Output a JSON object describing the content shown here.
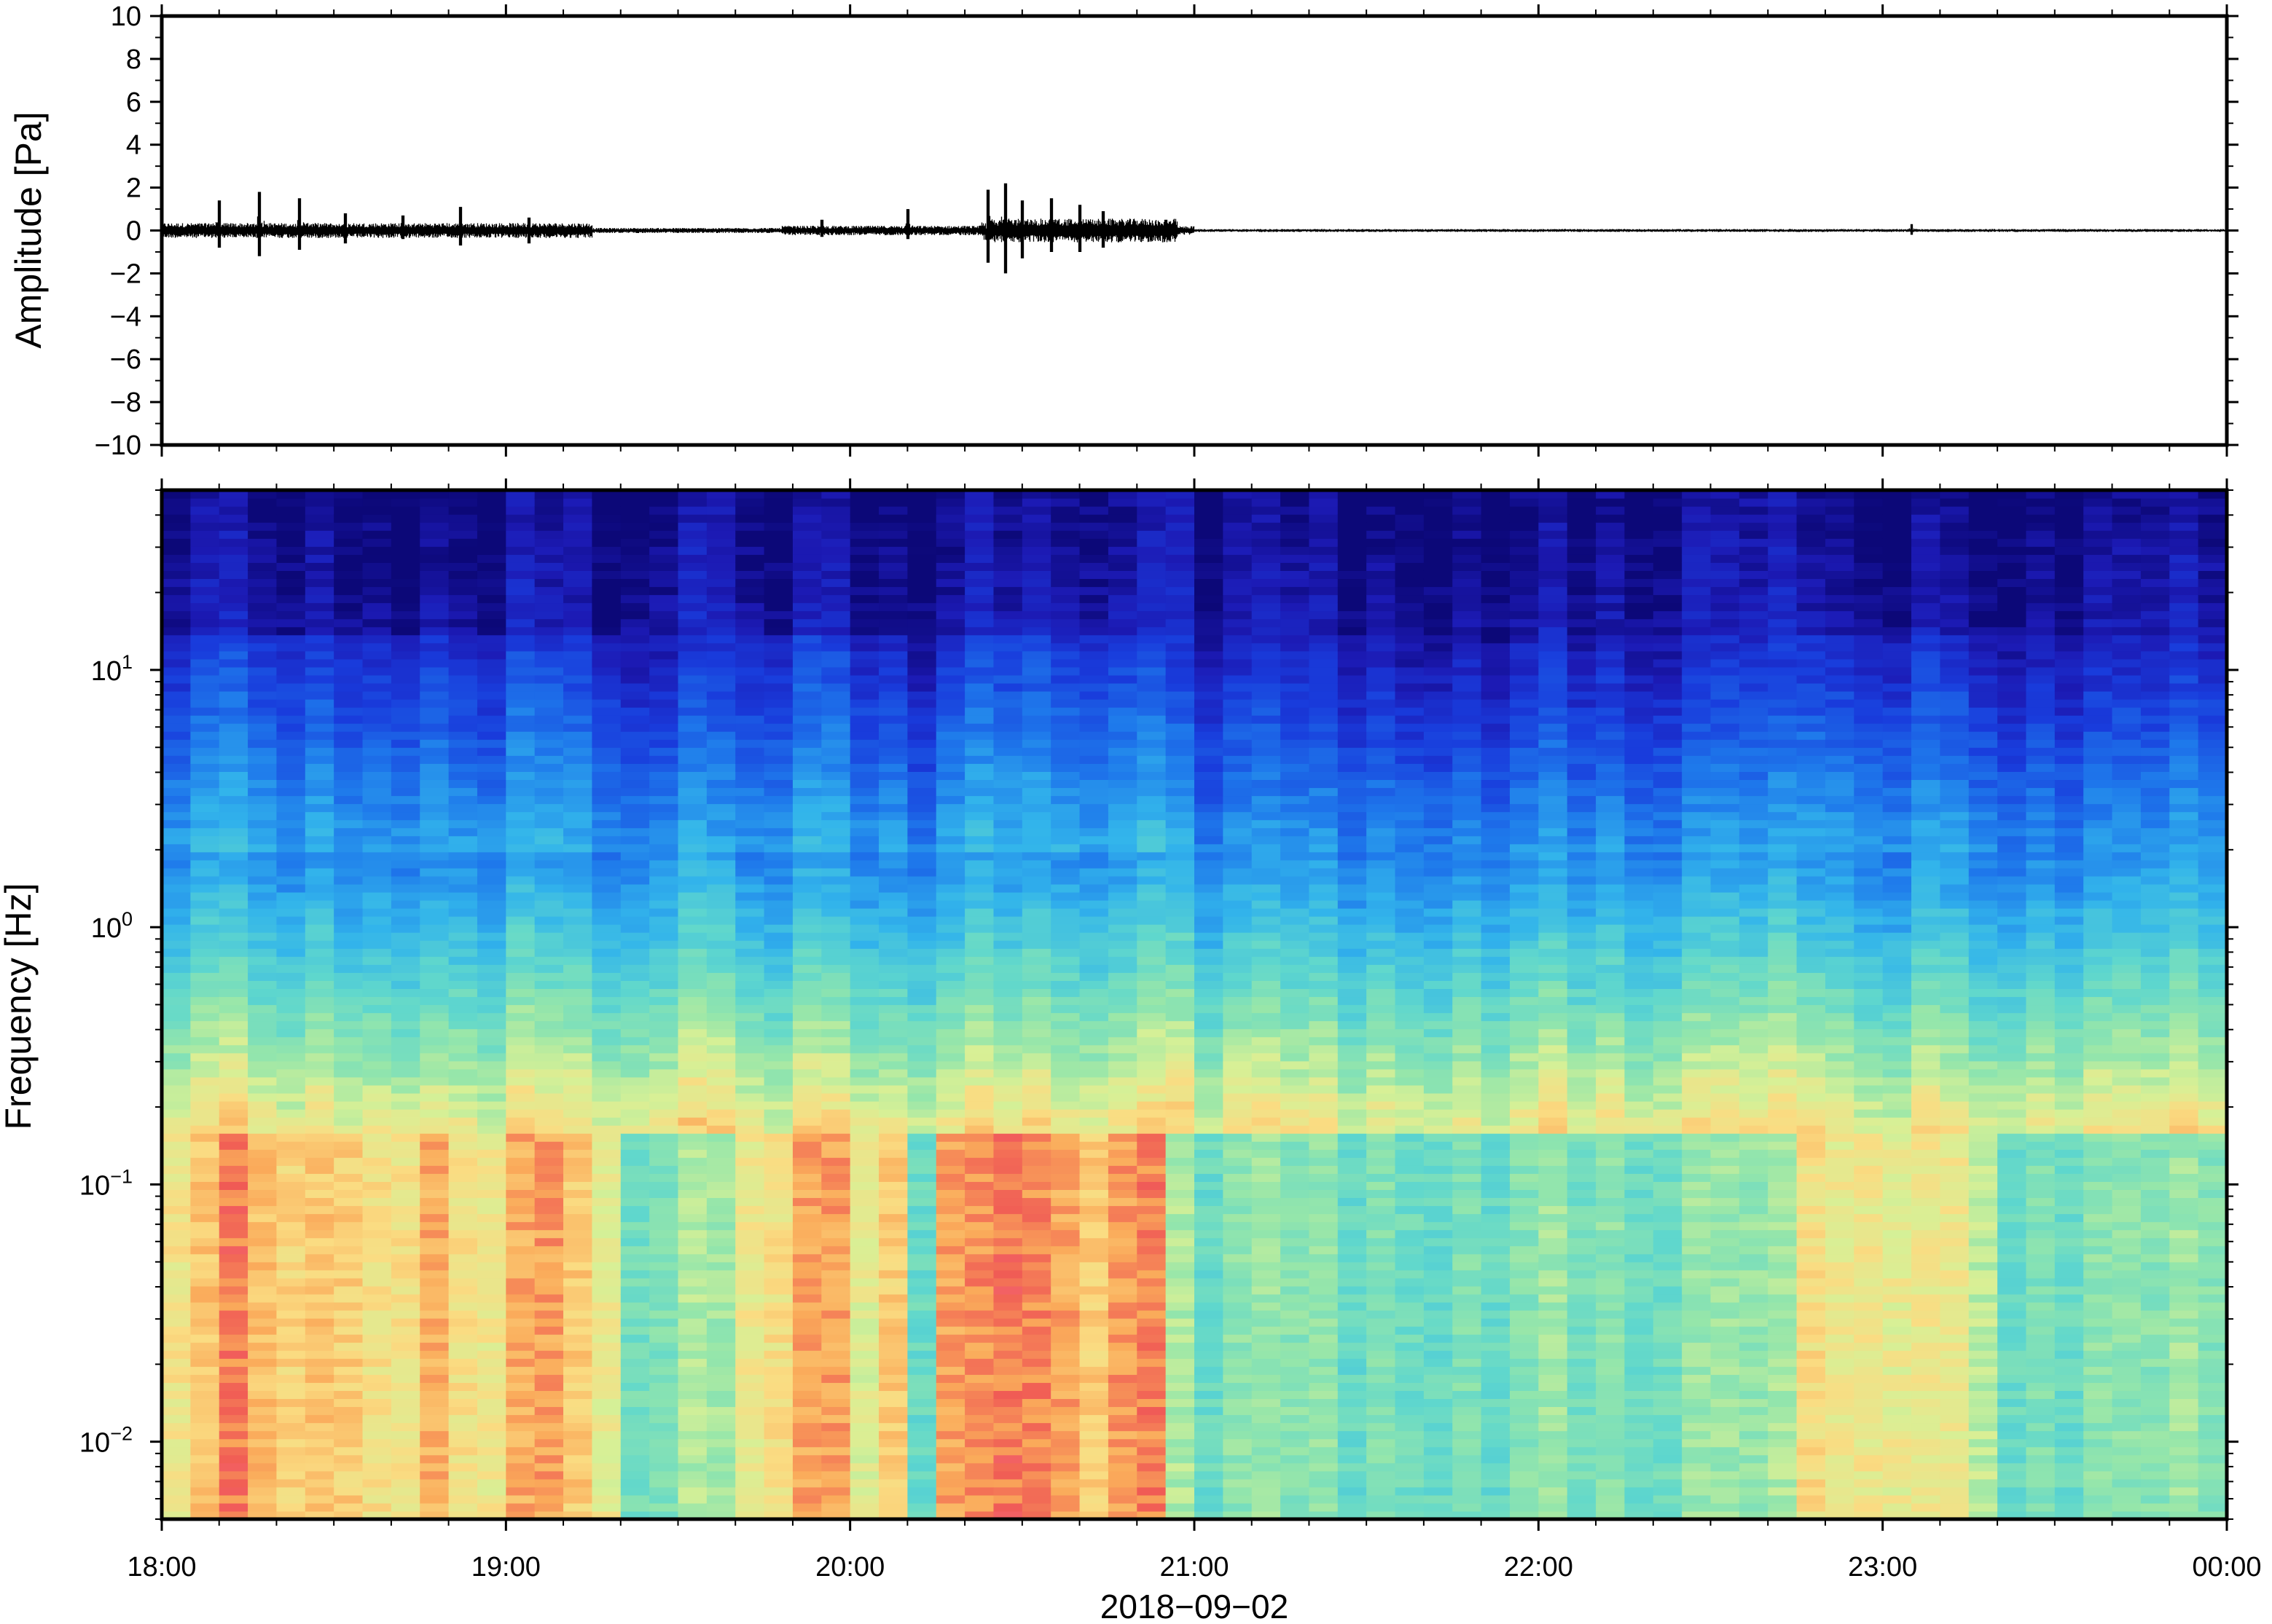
{
  "chart_data": [
    {
      "type": "line",
      "ylabel": "Amplitude [Pa]",
      "ylim": [
        -10,
        10
      ],
      "yticks": [
        "10",
        "8",
        "6",
        "4",
        "2",
        "0",
        "−2",
        "−4",
        "−6",
        "−8",
        "−10"
      ],
      "grid": false,
      "series_color": "#000000",
      "time_range": [
        "18:00",
        "00:00"
      ],
      "bursts": [
        {
          "time": "18:10",
          "min": -0.8,
          "max": 1.4
        },
        {
          "time": "18:17",
          "min": -1.2,
          "max": 1.8
        },
        {
          "time": "18:24",
          "min": -0.9,
          "max": 1.5
        },
        {
          "time": "18:32",
          "min": -0.6,
          "max": 0.8
        },
        {
          "time": "18:42",
          "min": -0.4,
          "max": 0.7
        },
        {
          "time": "18:52",
          "min": -0.7,
          "max": 1.1
        },
        {
          "time": "19:04",
          "min": -0.6,
          "max": 0.6
        },
        {
          "time": "19:55",
          "min": -0.3,
          "max": 0.5
        },
        {
          "time": "20:10",
          "min": -0.4,
          "max": 1.0
        },
        {
          "time": "20:24",
          "min": -1.5,
          "max": 1.9
        },
        {
          "time": "20:27",
          "min": -2.0,
          "max": 2.2
        },
        {
          "time": "20:30",
          "min": -1.3,
          "max": 1.4
        },
        {
          "time": "20:35",
          "min": -1.0,
          "max": 1.5
        },
        {
          "time": "20:40",
          "min": -1.0,
          "max": 1.2
        },
        {
          "time": "20:44",
          "min": -0.8,
          "max": 0.9
        },
        {
          "time": "20:55",
          "min": -0.3,
          "max": 0.5
        },
        {
          "time": "23:05",
          "min": -0.2,
          "max": 0.3
        }
      ]
    },
    {
      "type": "heatmap",
      "ylabel": "Frequency [Hz]",
      "yscale": "log",
      "ylim": [
        0.005,
        50
      ],
      "ytick_labels": [
        {
          "base": "10",
          "exp": "1",
          "value": 10
        },
        {
          "base": "10",
          "exp": "0",
          "value": 1
        },
        {
          "base": "10",
          "exp": "−1",
          "value": 0.1
        },
        {
          "base": "10",
          "exp": "−2",
          "value": 0.01
        }
      ],
      "colormap": "rainbow",
      "x_categories": [
        "18:00",
        "19:00",
        "20:00",
        "21:00",
        "22:00",
        "23:00",
        "00:00"
      ],
      "xlabel": "2018−09−02",
      "energetic_bands": [
        {
          "start": "18:00",
          "end": "19:15",
          "low_freq_level": 0.85
        },
        {
          "start": "19:45",
          "end": "20:05",
          "low_freq_level": 0.8
        },
        {
          "start": "20:20",
          "end": "20:50",
          "low_freq_level": 0.95
        },
        {
          "start": "22:50",
          "end": "23:15",
          "low_freq_level": 0.7
        }
      ]
    }
  ],
  "x_axis": {
    "tick_labels": [
      "18:00",
      "19:00",
      "20:00",
      "21:00",
      "22:00",
      "23:00",
      "00:00"
    ],
    "date": "2018−09−02"
  }
}
